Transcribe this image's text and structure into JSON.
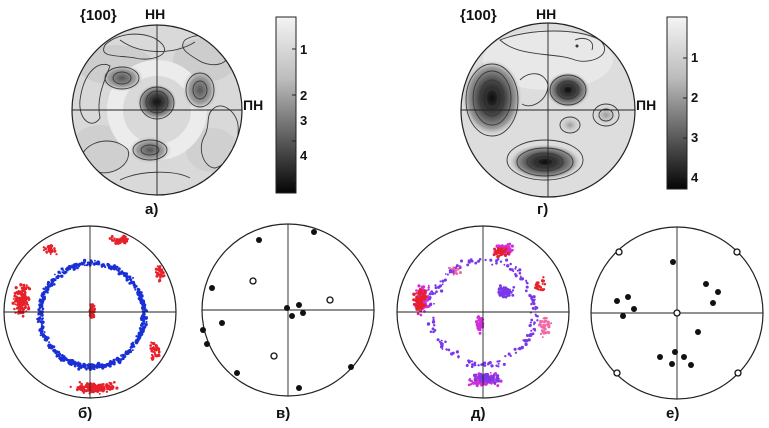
{
  "panels": {
    "a": {
      "title": "{100}",
      "axis_top": "НН",
      "axis_right": "ПН",
      "caption": "а)"
    },
    "g": {
      "title": "{100}",
      "axis_top": "НН",
      "axis_right": "ПН",
      "caption": "г)"
    },
    "b": {
      "caption": "б)"
    },
    "v": {
      "caption": "в)"
    },
    "d": {
      "caption": "д)"
    },
    "e": {
      "caption": "е)"
    }
  },
  "scale_a": {
    "ticks": [
      "1",
      "2",
      "3",
      "4"
    ]
  },
  "scale_g": {
    "ticks": [
      "1",
      "2",
      "3",
      "4"
    ]
  },
  "colors": {
    "red": "#e8202a",
    "blue": "#1a2fd6",
    "magenta": "#d030d8",
    "violet": "#7a38e8",
    "pink": "#f06aa8",
    "contour": "#3a3a3a"
  }
}
